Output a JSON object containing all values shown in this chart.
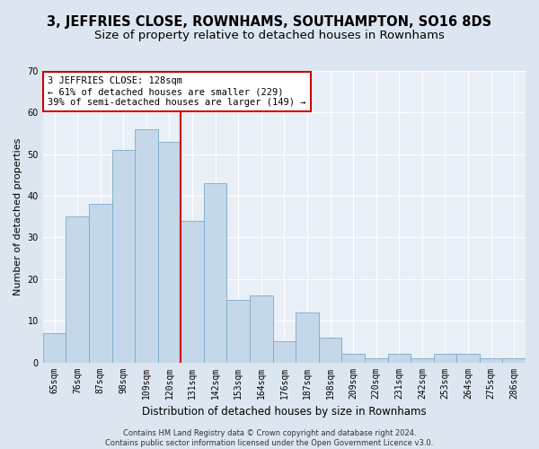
{
  "title": "3, JEFFRIES CLOSE, ROWNHAMS, SOUTHAMPTON, SO16 8DS",
  "subtitle": "Size of property relative to detached houses in Rownhams",
  "xlabel": "Distribution of detached houses by size in Rownhams",
  "ylabel": "Number of detached properties",
  "categories": [
    "65sqm",
    "76sqm",
    "87sqm",
    "98sqm",
    "109sqm",
    "120sqm",
    "131sqm",
    "142sqm",
    "153sqm",
    "164sqm",
    "176sqm",
    "187sqm",
    "198sqm",
    "209sqm",
    "220sqm",
    "231sqm",
    "242sqm",
    "253sqm",
    "264sqm",
    "275sqm",
    "286sqm"
  ],
  "values": [
    7,
    35,
    38,
    51,
    56,
    53,
    34,
    43,
    15,
    16,
    5,
    12,
    6,
    2,
    1,
    2,
    1,
    2,
    2,
    1,
    1
  ],
  "bar_color": "#c5d8ea",
  "bar_edge_color": "#7aaac8",
  "vline_bar_index": 5,
  "vline_color": "#cc0000",
  "annotation_text": "3 JEFFRIES CLOSE: 128sqm\n← 61% of detached houses are smaller (229)\n39% of semi-detached houses are larger (149) →",
  "annotation_box_facecolor": "#ffffff",
  "annotation_box_edgecolor": "#cc0000",
  "footer_text": "Contains HM Land Registry data © Crown copyright and database right 2024.\nContains public sector information licensed under the Open Government Licence v3.0.",
  "ylim": [
    0,
    70
  ],
  "yticks": [
    0,
    10,
    20,
    30,
    40,
    50,
    60,
    70
  ],
  "fig_facecolor": "#dce6f0",
  "plot_facecolor": "#e8eff7",
  "title_fontsize": 10.5,
  "subtitle_fontsize": 9.5,
  "xlabel_fontsize": 8.5,
  "ylabel_fontsize": 8,
  "tick_fontsize": 7,
  "annotation_fontsize": 7.5,
  "footer_fontsize": 6
}
